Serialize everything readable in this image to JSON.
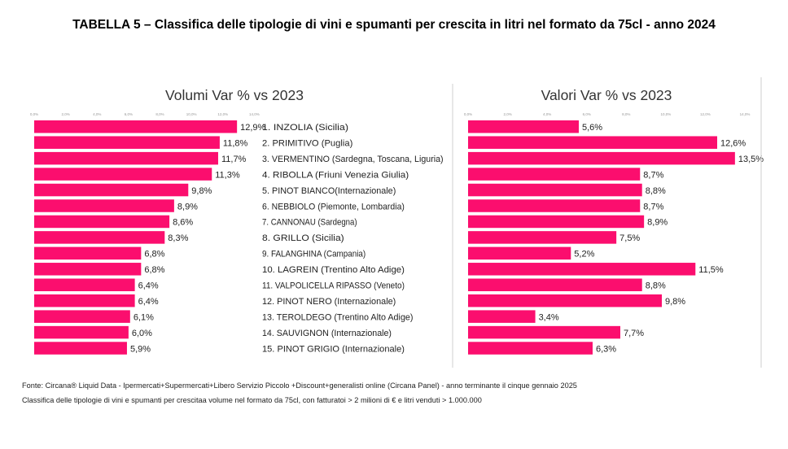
{
  "title": "TABELLA 5 – Classifica delle tipologie di vini e spumanti per crescita in litri nel formato da 75cl - anno 2024",
  "source_lines": [
    "Fonte: Circana® Liquid Data - Ipermercati+Supermercati+Libero Servizio Piccolo +Discount+generalisti online (Circana Panel) - anno terminante il cinque gennaio 2025",
    "Classifica delle tipologie di vini e spumanti per crescitaa volume nel formato da 75cl, con fatturatoi > 2 milioni di € e litri venduti > 1.000.000"
  ],
  "colors": {
    "bar": "#fb0e6e",
    "separator": "#cfcfcf",
    "text": "#222222",
    "axis_tick": "#999999"
  },
  "chart_data": [
    {
      "type": "bar",
      "orientation": "horizontal",
      "title": "Volumi Var % vs 2023",
      "xlim": [
        0,
        14
      ],
      "tick_values": [
        0,
        2,
        4,
        6,
        8,
        10,
        12,
        14
      ],
      "categories": [
        "1. INZOLIA (Sicilia)",
        "2. PRIMITIVO (Puglia)",
        "3. VERMENTINO (Sardegna, Toscana, Liguria)",
        "4. RIBOLLA (Friuni Venezia Giulia)",
        "5. PINOT BIANCO(Internazionale)",
        "6. NEBBIOLO (Piemonte, Lombardia)",
        "7. CANNONAU (Sardegna)",
        "8. GRILLO (Sicilia)",
        "9. FALANGHINA (Campania)",
        "10. LAGREIN (Trentino Alto Adige)",
        "11. VALPOLICELLA RIPASSO (Veneto)",
        "12. PINOT NERO (Internazionale)",
        "13. TEROLDEGO (Trentino Alto Adige)",
        "14. SAUVIGNON (Internazionale)",
        "15. PINOT GRIGIO (Internazionale)"
      ],
      "values": [
        12.9,
        11.8,
        11.7,
        11.3,
        9.8,
        8.9,
        8.6,
        8.3,
        6.8,
        6.8,
        6.4,
        6.4,
        6.1,
        6.0,
        5.9
      ],
      "value_labels": [
        "12,9%",
        "11,8%",
        "11,7%",
        "11,3%",
        "9,8%",
        "8,9%",
        "8,6%",
        "8,3%",
        "6,8%",
        "6,8%",
        "6,4%",
        "6,4%",
        "6,1%",
        "6,0%",
        "5,9%"
      ]
    },
    {
      "type": "bar",
      "orientation": "horizontal",
      "title": "Valori Var % vs 2023",
      "xlim": [
        0,
        14
      ],
      "tick_values": [
        0,
        2,
        4,
        6,
        8,
        10,
        12,
        14
      ],
      "values": [
        5.6,
        12.6,
        13.5,
        8.7,
        8.8,
        8.7,
        8.9,
        7.5,
        5.2,
        11.5,
        8.8,
        9.8,
        3.4,
        7.7,
        6.3
      ],
      "value_labels": [
        "5,6%",
        "12,6%",
        "13,5%",
        "8,7%",
        "8,8%",
        "8,7%",
        "8,9%",
        "7,5%",
        "5,2%",
        "11,5%",
        "8,8%",
        "9,8%",
        "3,4%",
        "7,7%",
        "6,3%"
      ]
    }
  ]
}
